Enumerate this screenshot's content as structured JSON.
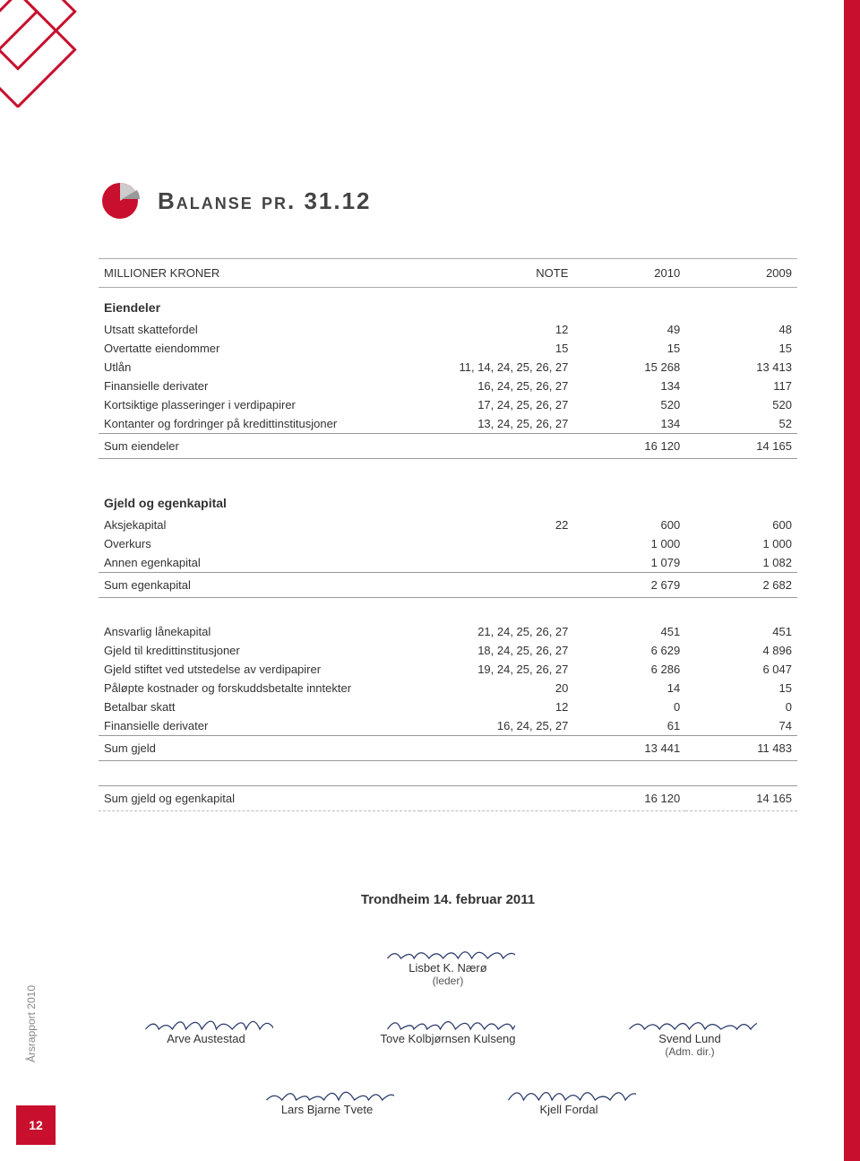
{
  "page": {
    "title": "Balanse pr. 31.12",
    "side_label": "Årsrapport 2010",
    "page_number": "12"
  },
  "colors": {
    "accent": "#c8102e",
    "pie_dark": "#999999",
    "pie_light": "#cccccc",
    "rule": "#999999",
    "text": "#333333"
  },
  "table": {
    "headers": {
      "c0": "MILLIONER KRONER",
      "c1": "NOTE",
      "c2": "2010",
      "c3": "2009"
    },
    "sections": [
      {
        "title": "Eiendeler",
        "rows": [
          {
            "label": "Utsatt skattefordel",
            "note": "12",
            "y1": "49",
            "y2": "48"
          },
          {
            "label": "Overtatte eiendommer",
            "note": "15",
            "y1": "15",
            "y2": "15"
          },
          {
            "label": "Utlån",
            "note": "11, 14, 24, 25, 26, 27",
            "y1": "15 268",
            "y2": "13 413"
          },
          {
            "label": "Finansielle derivater",
            "note": "16, 24, 25, 26, 27",
            "y1": "134",
            "y2": "117"
          },
          {
            "label": "Kortsiktige plasseringer i verdipapirer",
            "note": "17, 24, 25, 26, 27",
            "y1": "520",
            "y2": "520"
          },
          {
            "label": "Kontanter og fordringer på kredittinstitusjoner",
            "note": "13, 24, 25, 26, 27",
            "y1": "134",
            "y2": "52"
          }
        ],
        "sum": {
          "label": "Sum eiendeler",
          "y1": "16 120",
          "y2": "14 165"
        }
      },
      {
        "title": "Gjeld og egenkapital",
        "rows": [
          {
            "label": "Aksjekapital",
            "note": "22",
            "y1": "600",
            "y2": "600"
          },
          {
            "label": "Overkurs",
            "note": "",
            "y1": "1 000",
            "y2": "1 000"
          },
          {
            "label": "Annen egenkapital",
            "note": "",
            "y1": "1 079",
            "y2": "1 082"
          }
        ],
        "sum": {
          "label": "Sum egenkapital",
          "y1": "2 679",
          "y2": "2 682"
        }
      },
      {
        "title": "",
        "rows": [
          {
            "label": "Ansvarlig lånekapital",
            "note": "21, 24, 25, 26, 27",
            "y1": "451",
            "y2": "451"
          },
          {
            "label": "Gjeld til kredittinstitusjoner",
            "note": "18, 24, 25, 26, 27",
            "y1": "6 629",
            "y2": "4 896"
          },
          {
            "label": "Gjeld stiftet ved utstedelse av verdipapirer",
            "note": "19, 24, 25, 26, 27",
            "y1": "6 286",
            "y2": "6 047"
          },
          {
            "label": "Påløpte kostnader og forskuddsbetalte inntekter",
            "note": "20",
            "y1": "14",
            "y2": "15"
          },
          {
            "label": "Betalbar skatt",
            "note": "12",
            "y1": "0",
            "y2": "0"
          },
          {
            "label": "Finansielle derivater",
            "note": "16, 24, 25, 27",
            "y1": "61",
            "y2": "74"
          }
        ],
        "sum": {
          "label": "Sum gjeld",
          "y1": "13 441",
          "y2": "11 483"
        }
      }
    ],
    "grand_total": {
      "label": "Sum gjeld og egenkapital",
      "y1": "16 120",
      "y2": "14 165"
    }
  },
  "signatures": {
    "date": "Trondheim 14. februar 2011",
    "rows": [
      [
        {
          "name": "Lisbet K. Nærø",
          "role": "(leder)"
        }
      ],
      [
        {
          "name": "Arve Austestad",
          "role": ""
        },
        {
          "name": "Tove Kolbjørnsen Kulseng",
          "role": ""
        },
        {
          "name": "Svend Lund",
          "role": "(Adm. dir.)"
        }
      ],
      [
        {
          "name": "Lars Bjarne Tvete",
          "role": ""
        },
        {
          "name": "Kjell Fordal",
          "role": ""
        }
      ]
    ]
  }
}
